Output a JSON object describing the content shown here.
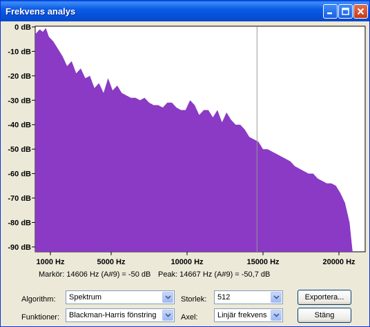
{
  "window": {
    "title": "Frekvens analys"
  },
  "titlebar_buttons": [
    "minimize-icon",
    "maximize-icon",
    "close-icon"
  ],
  "plot": {
    "fill_color": "#8A3AC4",
    "cursor_color": "#9A9A9A",
    "y_ticks": [
      "0 dB",
      "-10 dB",
      "-20 dB",
      "-30 dB",
      "-40 dB",
      "-50 dB",
      "-60 dB",
      "-70 dB",
      "-80 dB",
      "-90 dB"
    ],
    "x_ticks": [
      "1000 Hz",
      "5000 Hz",
      "10000 Hz",
      "15000 Hz",
      "20000 Hz"
    ]
  },
  "chart_data": {
    "type": "area",
    "xlabel": "",
    "ylabel": "",
    "x_unit": "Hz",
    "y_unit": "dB",
    "xlim": [
      0,
      21000
    ],
    "ylim": [
      -92,
      0
    ],
    "marker_x": 14606,
    "x_tick_values": [
      1000,
      5000,
      10000,
      15000,
      20000
    ],
    "y_tick_values": [
      0,
      -10,
      -20,
      -30,
      -40,
      -50,
      -60,
      -70,
      -80,
      -90
    ],
    "x": [
      0,
      300,
      500,
      700,
      900,
      1200,
      1500,
      1800,
      2100,
      2400,
      2700,
      3000,
      3300,
      3600,
      3900,
      4200,
      4500,
      4800,
      5100,
      5400,
      5700,
      6000,
      6300,
      6600,
      6900,
      7200,
      7500,
      7800,
      8100,
      8400,
      8700,
      9000,
      9300,
      9600,
      9900,
      10200,
      10500,
      10800,
      11100,
      11400,
      11700,
      12000,
      12300,
      12600,
      12900,
      13200,
      13500,
      13800,
      14100,
      14400,
      14700,
      15000,
      15300,
      15600,
      15900,
      16200,
      16500,
      16800,
      17100,
      17400,
      17700,
      18000,
      18300,
      18600,
      18900,
      19200,
      19500,
      19800,
      20100,
      20400,
      20700,
      20900
    ],
    "values": [
      -3,
      -1,
      -2,
      -0.5,
      -4,
      -6,
      -9,
      -12,
      -16,
      -14,
      -19,
      -17,
      -21,
      -20,
      -25,
      -23,
      -27,
      -21,
      -26,
      -24,
      -27,
      -28,
      -29,
      -29,
      -30,
      -29,
      -31,
      -32,
      -32,
      -33,
      -31,
      -31,
      -33,
      -34,
      -34,
      -30,
      -32,
      -36,
      -34,
      -34,
      -37,
      -34,
      -39,
      -35,
      -38,
      -40,
      -40,
      -42,
      -45,
      -46,
      -47,
      -50,
      -50,
      -51,
      -52,
      -53,
      -54,
      -55,
      -57,
      -58,
      -59,
      -60,
      -60,
      -62,
      -63,
      -64,
      -64,
      -65,
      -68,
      -72,
      -80,
      -92
    ]
  },
  "status": {
    "marker": "Markör: 14606 Hz (A#9) = -50 dB",
    "peak": "Peak: 14667 Hz (A#9) = -50,7 dB"
  },
  "controls": {
    "algorithm_label": "Algorithm:",
    "algorithm_value": "Spektrum",
    "size_label": "Storlek:",
    "size_value": "512",
    "functions_label": "Funktioner:",
    "functions_value": "Blackman-Harris fönstring",
    "axis_label": "Axel:",
    "axis_value": "Linjär frekvens",
    "export_button": "Exportera...",
    "close_button": "Stäng"
  }
}
